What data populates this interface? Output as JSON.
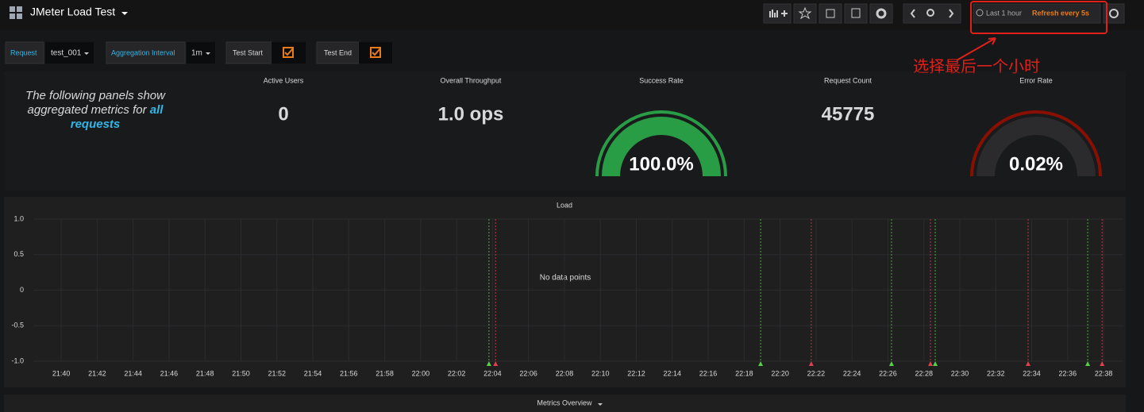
{
  "header": {
    "title": "JMeter Load Test",
    "time_range": "Last 1 hour",
    "refresh": "Refresh every 5s"
  },
  "callout": "选择最后一个小时",
  "variables": [
    {
      "label": "Request",
      "value": "test_001"
    },
    {
      "label": "Aggregation Interval",
      "value": "1m"
    }
  ],
  "intro": {
    "text": "The following panels show aggregated metrics for",
    "emphasis": "all requests"
  },
  "stats": [
    {
      "title": "Active Users",
      "value": "0"
    },
    {
      "title": "Overall Throughput",
      "value": "1.0 ops"
    },
    {
      "title": "Request Count",
      "value": "45775"
    }
  ],
  "gauges": [
    {
      "title": "Success Rate",
      "value": 100,
      "value_label": "100.0%",
      "range": [
        0,
        100
      ],
      "color": "#299c46"
    },
    {
      "title": "Error Rate",
      "value": 0.02,
      "value_label": "0.02%",
      "range": [
        0,
        100
      ],
      "color": "#eb7b18"
    }
  ],
  "chart_data": {
    "type": "line",
    "title": "Load",
    "message": "No data points",
    "xlim": [
      "21:38:27",
      "22:39:06"
    ],
    "xticks": [
      "21:40",
      "21:42",
      "21:44",
      "21:46",
      "21:48",
      "21:50",
      "21:52",
      "21:54",
      "21:56",
      "21:58",
      "22:00",
      "22:02",
      "22:04",
      "22:06",
      "22:08",
      "22:10",
      "22:12",
      "22:14",
      "22:16",
      "22:18",
      "22:20",
      "22:22",
      "22:24",
      "22:26",
      "22:28",
      "22:30",
      "22:32",
      "22:34",
      "22:36",
      "22:38"
    ],
    "ylim": [
      -1,
      1
    ],
    "yticks": [
      {
        "value": 1,
        "label": "1.0"
      },
      {
        "value": 0.5,
        "label": "0.5"
      },
      0,
      {
        "value": -0.5,
        "label": "-0.5"
      },
      {
        "value": -1,
        "label": "-1.0"
      }
    ],
    "grid": true,
    "annotations": [
      {
        "name": "Test Start",
        "color": "#56d04a",
        "x": [
          "22:03:48",
          "22:18:55",
          "22:26:12",
          "22:28:38",
          "22:37:07"
        ]
      },
      {
        "name": "Test End",
        "color": "#e0404c",
        "x": [
          "22:04:10",
          "22:21:44",
          "22:28:22",
          "22:33:48",
          "22:37:55"
        ]
      }
    ]
  },
  "row": {
    "title": "Metrics Overview"
  }
}
